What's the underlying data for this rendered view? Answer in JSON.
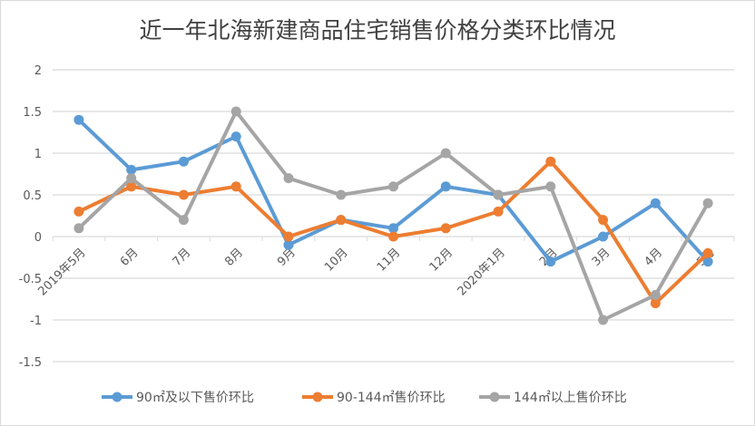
{
  "chart_data": {
    "type": "line",
    "title": "近一年北海新建商品住宅销售价格分类环比情况",
    "categories": [
      "2019年5月",
      "6月",
      "7月",
      "8月",
      "9月",
      "10月",
      "11月",
      "12月",
      "2020年1月",
      "2月",
      "3月",
      "4月",
      "5月"
    ],
    "ylim": [
      -1.5,
      2
    ],
    "yticks": [
      "2",
      "1.5",
      "1",
      "0.5",
      "0",
      "-0.5",
      "-1",
      "-1.5"
    ],
    "ytick_values": [
      2,
      1.5,
      1,
      0.5,
      0,
      -0.5,
      -1,
      -1.5
    ],
    "grid": true,
    "legend": "bottom",
    "series": [
      {
        "name": "90㎡及以下售价环比",
        "color": "#5b9bd5",
        "values": [
          1.4,
          0.8,
          0.9,
          1.2,
          -0.1,
          0.2,
          0.1,
          0.6,
          0.5,
          -0.3,
          0,
          0.4,
          -0.3
        ]
      },
      {
        "name": "90-144㎡售价环比",
        "color": "#ed7d31",
        "values": [
          0.3,
          0.6,
          0.5,
          0.6,
          0,
          0.2,
          0,
          0.1,
          0.3,
          0.9,
          0.2,
          -0.8,
          -0.2
        ]
      },
      {
        "name": "144㎡以上售价环比",
        "color": "#a5a5a5",
        "values": [
          0.1,
          0.7,
          0.2,
          1.5,
          0.7,
          0.5,
          0.6,
          1.0,
          0.5,
          0.6,
          -1.0,
          -0.7,
          0.4
        ]
      }
    ]
  }
}
